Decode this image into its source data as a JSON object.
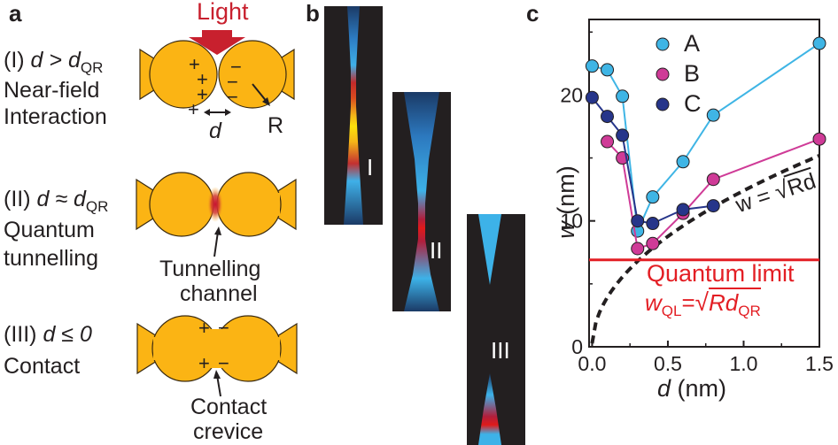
{
  "panel_a": {
    "letter": "a",
    "light_label": "Light",
    "regimes": [
      {
        "prefix": "(I) ",
        "relation": "d > d",
        "relation_sub": "QR",
        "line2": "Near-field",
        "line3": "Interaction"
      },
      {
        "prefix": "(II) ",
        "relation": "d ≈ d",
        "relation_sub": "QR",
        "line2": "Quantum",
        "line3": "tunnelling"
      },
      {
        "prefix": "(III) ",
        "relation": "d ≤ 0",
        "relation_sub": "",
        "line2": "Contact",
        "line3": ""
      }
    ],
    "gap_label": "d",
    "radius_label": "R",
    "charges_left": "+",
    "charges_right": "−",
    "tunnel_label_1": "Tunnelling",
    "tunnel_label_2": "channel",
    "contact_label_1": "Contact",
    "contact_label_2": "crevice",
    "colors": {
      "particle": "#fbb414",
      "light_arrow": "#c8202e"
    }
  },
  "panel_b": {
    "letter": "b",
    "strip_labels": [
      "I",
      "II",
      "III"
    ]
  },
  "chart_data": {
    "type": "scatter",
    "panel_letter": "c",
    "xlabel": "d",
    "xlabel_unit": " (nm)",
    "ylabel": "w",
    "ylabel_unit": " (nm)",
    "xlim": [
      -0.02,
      1.5
    ],
    "ylim": [
      0,
      26
    ],
    "xticks": [
      "0.0",
      "0.5",
      "1.0",
      "1.5"
    ],
    "yticks": [
      "0",
      "10",
      "20"
    ],
    "series": [
      {
        "name": "A",
        "color": "#3fb5e5",
        "points": [
          [
            0.0,
            22.3
          ],
          [
            0.1,
            22.0
          ],
          [
            0.2,
            19.9
          ],
          [
            0.3,
            9.2
          ],
          [
            0.4,
            11.9
          ],
          [
            0.6,
            14.7
          ],
          [
            0.8,
            18.4
          ],
          [
            1.5,
            24.1
          ]
        ]
      },
      {
        "name": "B",
        "color": "#cf3b97",
        "points": [
          [
            0.1,
            16.3
          ],
          [
            0.2,
            15.0
          ],
          [
            0.3,
            7.8
          ],
          [
            0.4,
            8.2
          ],
          [
            0.6,
            10.6
          ],
          [
            0.8,
            13.3
          ],
          [
            1.5,
            16.5
          ]
        ]
      },
      {
        "name": "C",
        "color": "#26358a",
        "points": [
          [
            0.0,
            19.8
          ],
          [
            0.1,
            18.3
          ],
          [
            0.2,
            16.8
          ],
          [
            0.3,
            10.0
          ],
          [
            0.4,
            9.8
          ],
          [
            0.6,
            10.9
          ],
          [
            0.8,
            11.2
          ]
        ]
      }
    ],
    "curve_label": "w = √Rd",
    "curve_text": "w = ",
    "curve_radicand": "Rd",
    "quantum_limit_label": "Quantum limit",
    "quantum_limit_value": 6.9,
    "quantum_limit_color": "#e31e24",
    "wql_prefix": "w",
    "wql_sub": "QL",
    "wql_eq": "=",
    "wql_radicand": "Rd",
    "wql_radicand_sub": "QR",
    "legend_position": "top"
  }
}
